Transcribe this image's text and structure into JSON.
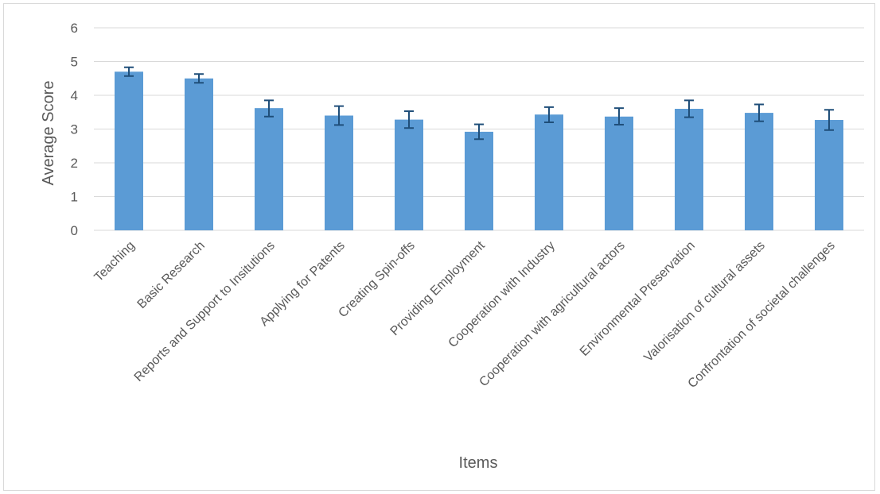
{
  "chart_data": {
    "type": "bar",
    "title": "",
    "xlabel": "Items",
    "ylabel": "Average Score",
    "ylim": [
      0,
      6
    ],
    "yticks": [
      0,
      1,
      2,
      3,
      4,
      5,
      6
    ],
    "grid": true,
    "legend": "none",
    "bar_color": "#5b9bd5",
    "error_bar_color": "#1f4e79",
    "categories": [
      "Teaching",
      "Basic Research",
      "Reports and Support to Insitutions",
      "Applying for Patents",
      "Creating Spin-offs",
      "Providing Employment",
      "Cooperation with Industry",
      "Cooperation with agricultural actors",
      "Environmental Preservation",
      "Valorisation of cultural assets",
      "Confrontation of societal challenges"
    ],
    "values": [
      4.7,
      4.5,
      3.62,
      3.4,
      3.28,
      2.92,
      3.43,
      3.37,
      3.6,
      3.48,
      3.27
    ],
    "error_low": [
      4.57,
      4.37,
      3.37,
      3.12,
      3.03,
      2.7,
      3.2,
      3.13,
      3.35,
      3.23,
      2.97
    ],
    "error_high": [
      4.83,
      4.63,
      3.85,
      3.68,
      3.53,
      3.14,
      3.65,
      3.62,
      3.85,
      3.73,
      3.57
    ]
  }
}
